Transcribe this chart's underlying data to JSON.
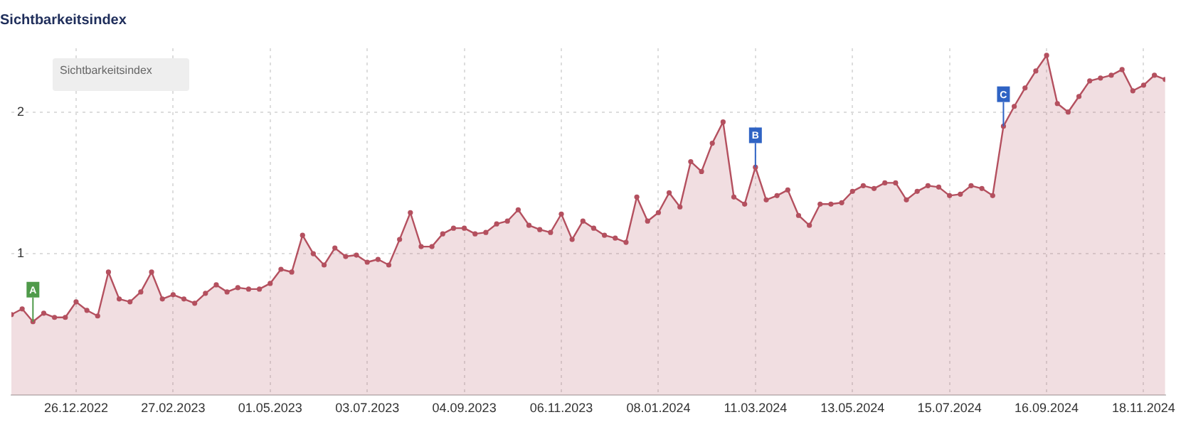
{
  "chart_data": {
    "type": "area",
    "title": "Sichtbarkeitsindex",
    "x": [
      "2022-11-14",
      "2022-11-21",
      "2022-11-28",
      "2022-12-05",
      "2022-12-12",
      "2022-12-19",
      "2022-12-26",
      "2023-01-02",
      "2023-01-09",
      "2023-01-16",
      "2023-01-23",
      "2023-01-30",
      "2023-02-06",
      "2023-02-13",
      "2023-02-20",
      "2023-02-27",
      "2023-03-06",
      "2023-03-13",
      "2023-03-20",
      "2023-03-27",
      "2023-04-03",
      "2023-04-10",
      "2023-04-17",
      "2023-04-24",
      "2023-05-01",
      "2023-05-08",
      "2023-05-15",
      "2023-05-22",
      "2023-05-29",
      "2023-06-05",
      "2023-06-12",
      "2023-06-19",
      "2023-06-26",
      "2023-07-03",
      "2023-07-10",
      "2023-07-17",
      "2023-07-24",
      "2023-07-31",
      "2023-08-07",
      "2023-08-14",
      "2023-08-21",
      "2023-08-28",
      "2023-09-04",
      "2023-09-11",
      "2023-09-18",
      "2023-09-25",
      "2023-10-02",
      "2023-10-09",
      "2023-10-16",
      "2023-10-23",
      "2023-10-30",
      "2023-11-06",
      "2023-11-13",
      "2023-11-20",
      "2023-11-27",
      "2023-12-04",
      "2023-12-11",
      "2023-12-18",
      "2023-12-25",
      "2024-01-01",
      "2024-01-08",
      "2024-01-15",
      "2024-01-22",
      "2024-01-29",
      "2024-02-05",
      "2024-02-12",
      "2024-02-19",
      "2024-02-26",
      "2024-03-04",
      "2024-03-11",
      "2024-03-18",
      "2024-03-25",
      "2024-04-01",
      "2024-04-08",
      "2024-04-15",
      "2024-04-22",
      "2024-04-29",
      "2024-05-06",
      "2024-05-13",
      "2024-05-20",
      "2024-05-27",
      "2024-06-03",
      "2024-06-10",
      "2024-06-17",
      "2024-06-24",
      "2024-07-01",
      "2024-07-08",
      "2024-07-15",
      "2024-07-22",
      "2024-07-29",
      "2024-08-05",
      "2024-08-12",
      "2024-08-19",
      "2024-08-26",
      "2024-09-02",
      "2024-09-09",
      "2024-09-16",
      "2024-09-23",
      "2024-09-30",
      "2024-10-07",
      "2024-10-14",
      "2024-10-21",
      "2024-10-28",
      "2024-11-04",
      "2024-11-11",
      "2024-11-18",
      "2024-11-25",
      "2024-12-02"
    ],
    "series": [
      {
        "color": "#b4505f",
        "values": [
          0.57,
          0.61,
          0.52,
          0.58,
          0.55,
          0.55,
          0.66,
          0.6,
          0.56,
          0.87,
          0.68,
          0.66,
          0.73,
          0.87,
          0.68,
          0.71,
          0.68,
          0.65,
          0.72,
          0.78,
          0.73,
          0.76,
          0.75,
          0.75,
          0.79,
          0.89,
          0.87,
          1.13,
          1.0,
          0.92,
          1.04,
          0.98,
          0.99,
          0.94,
          0.96,
          0.92,
          1.1,
          1.29,
          1.05,
          1.05,
          1.14,
          1.18,
          1.18,
          1.14,
          1.15,
          1.21,
          1.23,
          1.31,
          1.2,
          1.17,
          1.15,
          1.28,
          1.1,
          1.23,
          1.18,
          1.13,
          1.11,
          1.08,
          1.4,
          1.23,
          1.29,
          1.43,
          1.33,
          1.65,
          1.58,
          1.78,
          1.93,
          1.4,
          1.35,
          1.61,
          1.38,
          1.41,
          1.45,
          1.27,
          1.2,
          1.35,
          1.35,
          1.36,
          1.44,
          1.48,
          1.46,
          1.5,
          1.5,
          1.38,
          1.44,
          1.48,
          1.47,
          1.41,
          1.42,
          1.48,
          1.46,
          1.41,
          1.9,
          2.04,
          2.17,
          2.29,
          2.4,
          2.06,
          2.0,
          2.11,
          2.22,
          2.24,
          2.26,
          2.3,
          2.15,
          2.19,
          2.26,
          2.23
        ]
      }
    ],
    "xlim": [
      "2022-11-14",
      "2024-12-02"
    ],
    "xticks": [
      {
        "value": "2022-12-26",
        "label": "26.12.2022"
      },
      {
        "value": "2023-02-27",
        "label": "27.02.2023"
      },
      {
        "value": "2023-05-01",
        "label": "01.05.2023"
      },
      {
        "value": "2023-07-03",
        "label": "03.07.2023"
      },
      {
        "value": "2023-09-04",
        "label": "04.09.2023"
      },
      {
        "value": "2023-11-06",
        "label": "06.11.2023"
      },
      {
        "value": "2024-01-08",
        "label": "08.01.2024"
      },
      {
        "value": "2024-03-11",
        "label": "11.03.2024"
      },
      {
        "value": "2024-05-13",
        "label": "13.05.2024"
      },
      {
        "value": "2024-07-15",
        "label": "15.07.2024"
      },
      {
        "value": "2024-09-16",
        "label": "16.09.2024"
      },
      {
        "value": "2024-11-18",
        "label": "18.11.2024"
      }
    ],
    "ylim": [
      0,
      2.45
    ],
    "yticks": [
      1,
      2
    ],
    "grid": true,
    "marker": "circle",
    "annotations": [
      "Sichtbarkeitsindex",
      {
        "text": "A",
        "x": "2022-11-28",
        "y": 0.52
      },
      {
        "text": "B",
        "x": "2024-03-11",
        "y": 1.61
      },
      {
        "text": "C",
        "x": "2024-08-19",
        "y": 1.9
      }
    ]
  }
}
